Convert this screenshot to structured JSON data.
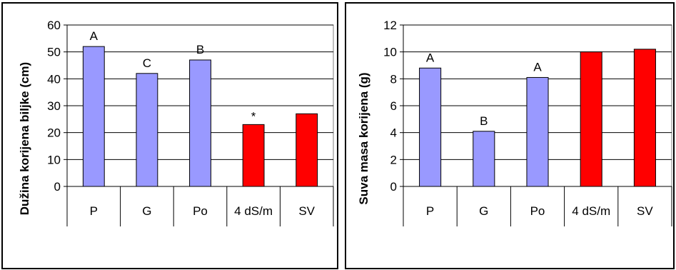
{
  "chart_data": [
    {
      "type": "bar",
      "categories": [
        "P",
        "G",
        "Po",
        "4 dS/m",
        "SV"
      ],
      "values": [
        52,
        42,
        47,
        23,
        27
      ],
      "bar_colors": [
        "#9999ff",
        "#9999ff",
        "#9999ff",
        "#ff0000",
        "#ff0000"
      ],
      "annotations": [
        "A",
        "C",
        "B",
        "*",
        ""
      ],
      "ylabel": "Dužina korijena biljke (cm)",
      "ylim": [
        0,
        60
      ],
      "yticks": [
        0,
        10,
        20,
        30,
        40,
        50,
        60
      ],
      "grid": true
    },
    {
      "type": "bar",
      "categories": [
        "P",
        "G",
        "Po",
        "4 dS/m",
        "SV"
      ],
      "values": [
        8.8,
        4.1,
        8.1,
        10.0,
        10.2
      ],
      "bar_colors": [
        "#9999ff",
        "#9999ff",
        "#9999ff",
        "#ff0000",
        "#ff0000"
      ],
      "annotations": [
        "A",
        "B",
        "A",
        "",
        ""
      ],
      "ylabel": "Suva masa korijena (g)",
      "ylim": [
        0,
        12
      ],
      "yticks": [
        0,
        2,
        4,
        6,
        8,
        10,
        12
      ],
      "grid": true
    }
  ]
}
